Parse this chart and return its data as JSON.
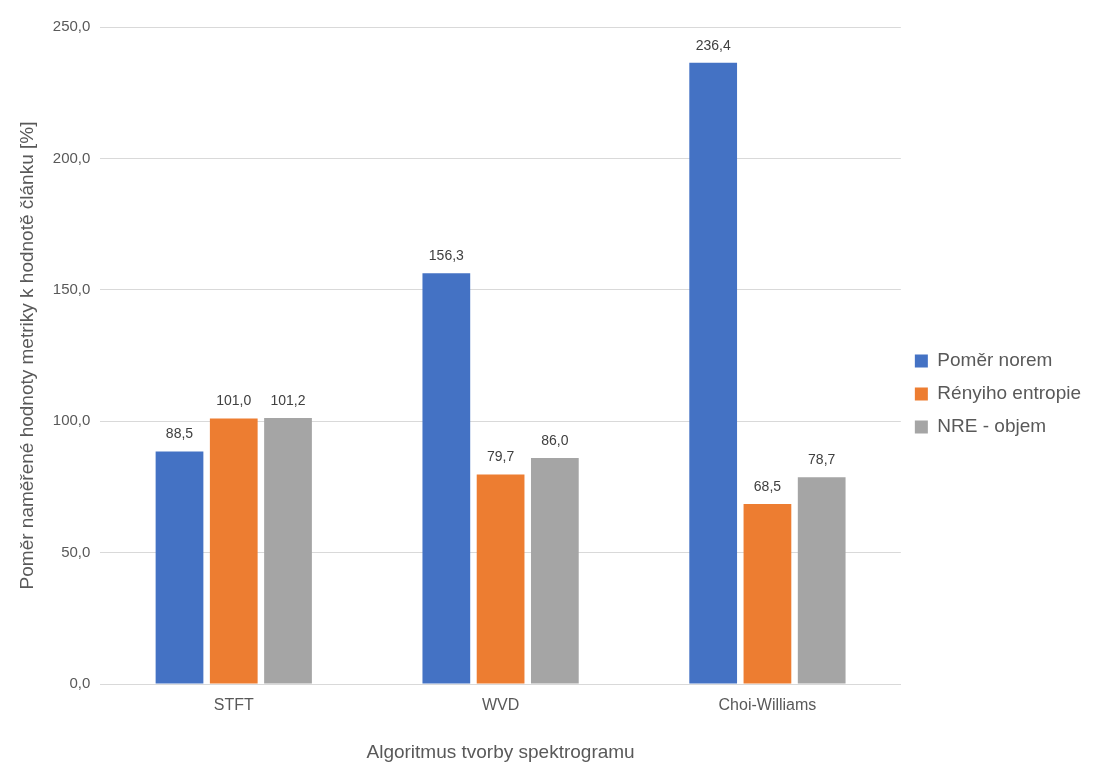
{
  "chart_data": {
    "type": "bar",
    "xlabel": "Algoritmus tvorby spektrogramu",
    "ylabel": "Poměr naměřené hodnoty metriky k hodnotě článku [%]",
    "categories": [
      "STFT",
      "WVD",
      "Choi-Williams"
    ],
    "series": [
      {
        "name": "Poměr norem",
        "color": "#4472c4",
        "values": [
          88.5,
          156.3,
          236.4
        ],
        "value_labels": [
          "88,5",
          "156,3",
          "236,4"
        ]
      },
      {
        "name": "Rényiho entropie",
        "color": "#ed7d31",
        "values": [
          101.0,
          79.7,
          68.5
        ],
        "value_labels": [
          "101,0",
          "79,7",
          "68,5"
        ]
      },
      {
        "name": "NRE - objem",
        "color": "#a5a5a5",
        "values": [
          101.2,
          86.0,
          78.7
        ],
        "value_labels": [
          "101,2",
          "86,0",
          "78,7"
        ]
      }
    ],
    "ylim": [
      0,
      250
    ],
    "yticks": [
      {
        "value": 0,
        "label": "0,0"
      },
      {
        "value": 50,
        "label": "50,0"
      },
      {
        "value": 100,
        "label": "100,0"
      },
      {
        "value": 150,
        "label": "150,0"
      },
      {
        "value": 200,
        "label": "200,0"
      },
      {
        "value": 250,
        "label": "250,0"
      }
    ],
    "grid": "y",
    "legend": "right"
  }
}
